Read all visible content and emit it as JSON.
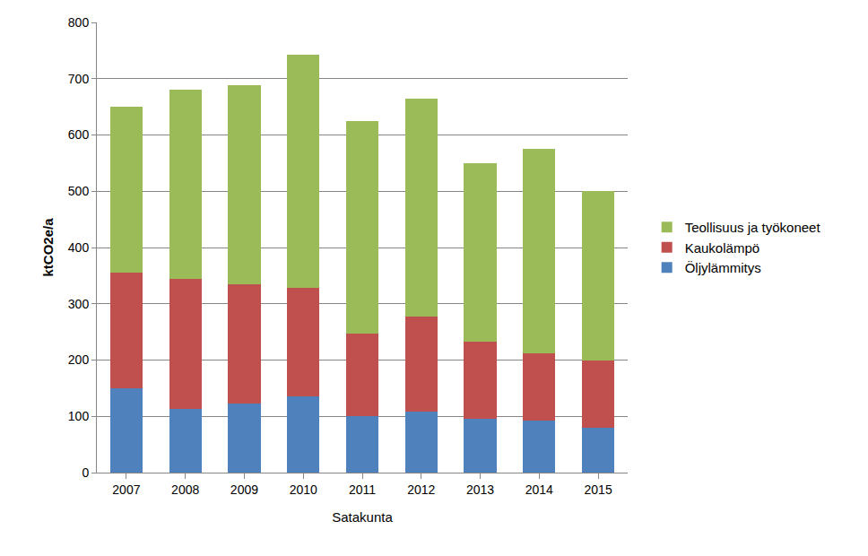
{
  "chart_data": {
    "type": "bar",
    "stacked": true,
    "categories": [
      "2007",
      "2008",
      "2009",
      "2010",
      "2011",
      "2012",
      "2013",
      "2014",
      "2015"
    ],
    "xlabel": "Satakunta",
    "ylabel": "ktCO2e/a",
    "ylim": [
      0,
      800
    ],
    "yticks": [
      0,
      100,
      200,
      300,
      400,
      500,
      600,
      700,
      800
    ],
    "grid": true,
    "legend": "right",
    "series": [
      {
        "name": "Öljylämmitys",
        "color": "#4f81bd",
        "values": [
          150,
          113,
          122,
          135,
          100,
          108,
          95,
          93,
          80
        ]
      },
      {
        "name": "Kaukolämpö",
        "color": "#c0504d",
        "values": [
          205,
          232,
          213,
          193,
          147,
          170,
          137,
          119,
          120
        ]
      },
      {
        "name": "Teollisuus ja työkoneet",
        "color": "#9bbb59",
        "values": [
          295,
          335,
          353,
          414,
          378,
          387,
          318,
          363,
          300
        ]
      }
    ]
  }
}
